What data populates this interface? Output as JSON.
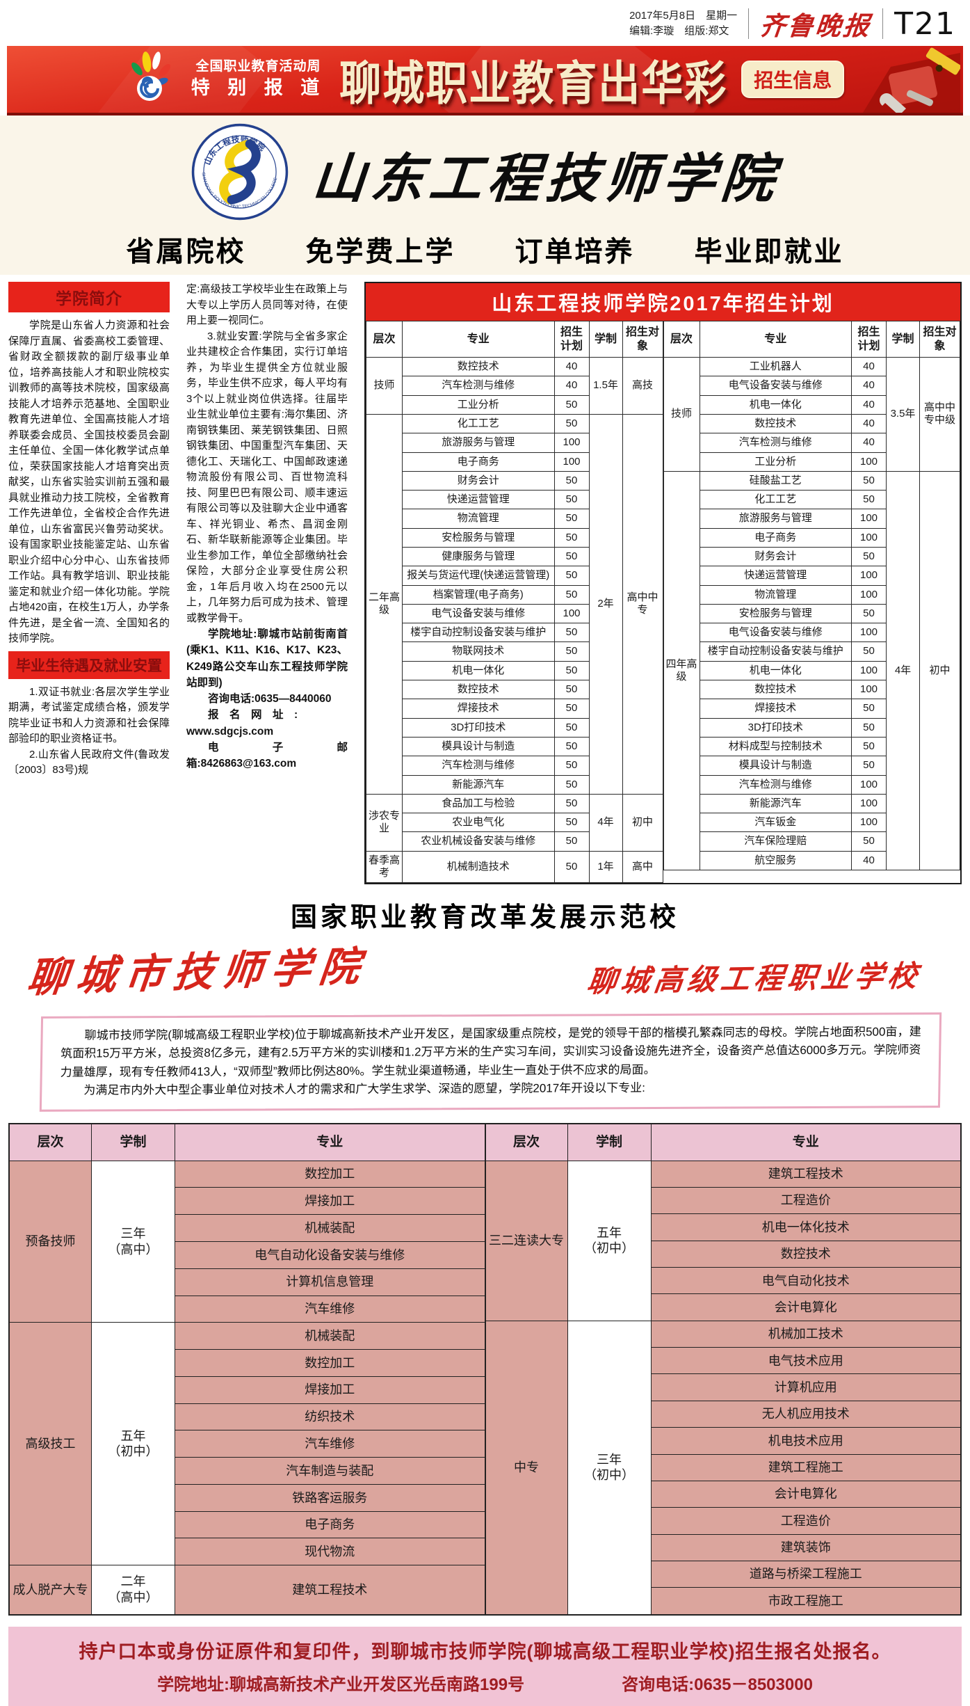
{
  "masthead": {
    "date_line": "2017年5月8日　星期一",
    "editor_line": "编辑:李璇　组版:郑文",
    "paper_name": "齐鲁晚报",
    "page_number": "T21"
  },
  "banner": {
    "event_line1": "全国职业教育活动周",
    "event_line2": "特 别 报 道",
    "headline": "聊城职业教育出华彩",
    "badge": "招生信息"
  },
  "college1": {
    "name": "山东工程技师学院",
    "emblem_caption": "SHANDONG POLYTECHNIC TECHNICIAN COLLEGE",
    "slogan": "省属院校　　免学费上学　　订单培养　　毕业即就业",
    "intro_title": "学院简介",
    "intro": "学院是山东省人力资源和社会保障厅直属、省委高校工委管理、省财政全额拨款的副厅级事业单位，培养高技能人才和职业院校实训教师的高等技术院校，国家级高技能人才培养示范基地、全国职业教育先进单位、全国高技能人才培养联委会成员、全国技校委员会副主任单位、全国一体化教学试点单位，荣获国家技能人才培育突出贡献奖，山东省实验实训前五强和最具就业推动力技工院校，全省教育工作先进单位，全省校企合作先进单位，山东省富民兴鲁劳动奖状。设有国家职业技能鉴定站、山东省职业介绍中心分中心、山东省技师工作站。具有教学培训、职业技能鉴定和就业介绍一体化功能。学院占地420亩，在校生1万人，办学条件先进，是全省一流、全国知名的技师学院。",
    "treat_title": "毕业生待遇及就业安置",
    "treat_1": "1.双证书就业:各层次学生学业期满，考试鉴定成绩合格，颁发学院毕业证书和人力资源和社会保障部验印的职业资格证书。",
    "treat_2a": "2.山东省人民政府文件(鲁政发〔2003〕83号)规",
    "treat_2b": "定:高级技工学校毕业生在政策上与大专以上学历人员同等对待，在使用上要一视同仁。",
    "treat_3": "3.就业安置:学院与全省多家企业共建校企合作集团，实行订单培养，为毕业生提供全方位就业服务，毕业生供不应求，每人平均有3个以上就业岗位供选择。往届毕业生就业单位主要有:海尔集团、济南钢铁集团、莱芜钢铁集团、日照钢铁集团、中国重型汽车集团、天德化工、天瑞化工、中国邮政速递物流股份有限公司、百世物流科技、阿里巴巴有限公司、顺丰速运有限公司等以及驻聊大企业中通客车、祥光铜业、希杰、昌润金刚石、新华联新能源等企业集团。毕业生参加工作，单位全部缴纳社会保险，大部分企业享受住房公积金，1年后月收入均在2500元以上，几年努力后可成为技术、管理或教学骨干。",
    "contact_address": "学院地址:聊城市站前街南首(乘K1、K11、K16、K17、K23、K249路公交车山东工程技师学院站即到)",
    "contact_phone": "咨询电话:0635—8440060",
    "contact_web_label": "报　名　网　址　:",
    "contact_web": "www.sdgcjs.com",
    "contact_email": "电子邮箱:8426863@163.com"
  },
  "plan_table": {
    "title": "山东工程技师学院2017年招生计划",
    "headers": [
      "层次",
      "专业",
      "招生计划",
      "学制",
      "招生对象"
    ],
    "left": [
      {
        "level": "技师",
        "years": "1.5年",
        "target": "高技",
        "rows": [
          [
            "数控技术",
            "40"
          ],
          [
            "汽车检测与维修",
            "40"
          ],
          [
            "工业分析",
            "50"
          ]
        ]
      },
      {
        "level": "二年高级",
        "years": "2年",
        "target": "高中中专",
        "rows": [
          [
            "化工工艺",
            "50"
          ],
          [
            "旅游服务与管理",
            "100"
          ],
          [
            "电子商务",
            "100"
          ],
          [
            "财务会计",
            "50"
          ],
          [
            "快递运营管理",
            "50"
          ],
          [
            "物流管理",
            "50"
          ],
          [
            "安检服务与管理",
            "50"
          ],
          [
            "健康服务与管理",
            "50"
          ],
          [
            "报关与货运代理(快递运营管理)",
            "50"
          ],
          [
            "档案管理(电子商务)",
            "50"
          ],
          [
            "电气设备安装与维修",
            "100"
          ],
          [
            "楼宇自动控制设备安装与维护",
            "50"
          ],
          [
            "物联网技术",
            "50"
          ],
          [
            "机电一体化",
            "50"
          ],
          [
            "数控技术",
            "50"
          ],
          [
            "焊接技术",
            "50"
          ],
          [
            "3D打印技术",
            "50"
          ],
          [
            "模具设计与制造",
            "50"
          ],
          [
            "汽车检测与维修",
            "50"
          ],
          [
            "新能源汽车",
            "50"
          ]
        ]
      },
      {
        "level": "涉农专业",
        "years": "4年",
        "target": "初中",
        "rows": [
          [
            "食品加工与检验",
            "50"
          ],
          [
            "农业电气化",
            "50"
          ],
          [
            "农业机械设备安装与维修",
            "50"
          ]
        ]
      },
      {
        "level": "春季高考",
        "years": "1年",
        "target": "高中",
        "rows": [
          [
            "机械制造技术",
            "50"
          ]
        ]
      }
    ],
    "right": [
      {
        "level": "技师",
        "years": "3.5年",
        "target": "高中中专中级",
        "rows": [
          [
            "工业机器人",
            "40"
          ],
          [
            "电气设备安装与维修",
            "40"
          ],
          [
            "机电一体化",
            "40"
          ],
          [
            "数控技术",
            "40"
          ],
          [
            "汽车检测与维修",
            "40"
          ],
          [
            "工业分析",
            "100"
          ]
        ]
      },
      {
        "level": "四年高级",
        "years": "4年",
        "target": "初中",
        "rows": [
          [
            "硅酸盐工艺",
            "50"
          ],
          [
            "化工工艺",
            "50"
          ],
          [
            "旅游服务与管理",
            "100"
          ],
          [
            "电子商务",
            "100"
          ],
          [
            "财务会计",
            "50"
          ],
          [
            "快递运营管理",
            "100"
          ],
          [
            "物流管理",
            "100"
          ],
          [
            "安检服务与管理",
            "50"
          ],
          [
            "电气设备安装与维修",
            "100"
          ],
          [
            "楼宇自动控制设备安装与维护",
            "50"
          ],
          [
            "机电一体化",
            "100"
          ],
          [
            "数控技术",
            "100"
          ],
          [
            "焊接技术",
            "50"
          ],
          [
            "3D打印技术",
            "50"
          ],
          [
            "材料成型与控制技术",
            "50"
          ],
          [
            "模具设计与制造",
            "50"
          ],
          [
            "汽车检测与维修",
            "100"
          ],
          [
            "新能源汽车",
            "100"
          ],
          [
            "汽车钣金",
            "100"
          ],
          [
            "汽车保险理赔",
            "50"
          ],
          [
            "航空服务",
            "40"
          ]
        ]
      }
    ]
  },
  "college2": {
    "heading": "国家职业教育改革发展示范校",
    "name_main": "聊城市技师学院",
    "name_alt": "聊城高级工程职业学校",
    "intro_p1": "聊城市技师学院(聊城高级工程职业学校)位于聊城高新技术产业开发区，是国家级重点院校，是党的领导干部的楷模孔繁森同志的母校。学院占地面积500亩，建筑面积15万平方米，总投资8亿多元，建有2.5万平方米的实训楼和1.2万平方米的生产实习车间，实训实习设备设施先进齐全，设备资产总值达6000多万元。学院师资力量雄厚，现有专任教师413人，“双师型”教师比例达80%。学生就业渠道畅通，毕业生一直处于供不应求的局面。",
    "intro_p2": "为满足市内外大中型企事业单位对技术人才的需求和广大学生求学、深造的愿望，学院2017年开设以下专业:",
    "majors_headers": [
      "层次",
      "学制",
      "专业"
    ],
    "majors_left": [
      {
        "level": "预备技师",
        "years": "三年\n（高中）",
        "majors": [
          "数控加工",
          "焊接加工",
          "机械装配",
          "电气自动化设备安装与维修",
          "计算机信息管理",
          "汽车维修"
        ]
      },
      {
        "level": "高级技工",
        "years": "五年\n（初中）",
        "majors": [
          "机械装配",
          "数控加工",
          "焊接加工",
          "纺织技术",
          "汽车维修",
          "汽车制造与装配",
          "铁路客运服务",
          "电子商务",
          "现代物流"
        ]
      },
      {
        "level": "成人脱产大专",
        "years": "二年\n（高中）",
        "majors": [
          "建筑工程技术"
        ]
      }
    ],
    "majors_right": [
      {
        "level": "三二连读大专",
        "years": "五年\n（初中）",
        "majors": [
          "建筑工程技术",
          "工程造价",
          "机电一体化技术",
          "数控技术",
          "电气自动化技术",
          "会计电算化"
        ]
      },
      {
        "level": "中专",
        "years": "三年\n（初中）",
        "majors": [
          "机械加工技术",
          "电气技术应用",
          "计算机应用",
          "无人机应用技术",
          "机电技术应用",
          "建筑工程施工",
          "会计电算化",
          "工程造价",
          "建筑装饰",
          "道路与桥梁工程施工",
          "市政工程施工"
        ]
      }
    ],
    "footer_line1": "持户口本或身份证原件和复印件，到聊城市技师学院(聊城高级工程职业学校)招生报名处报名。",
    "footer_address": "学院地址:聊城高新技术产业开发区光岳南路199号",
    "footer_phone": "咨询电话:0635－8503000"
  },
  "colors": {
    "banner_red": "#d92318",
    "headline_cream": "#f7ecc9",
    "section_header_red": "#e7231b",
    "table_title_red": "#e1241b",
    "pink_header": "#ecc3d3",
    "salmon_cell": "#dba59d",
    "footer_pink": "#f1c3d5",
    "footer_text_red": "#9f1d22",
    "calligraphy_red": "#d6251c"
  }
}
